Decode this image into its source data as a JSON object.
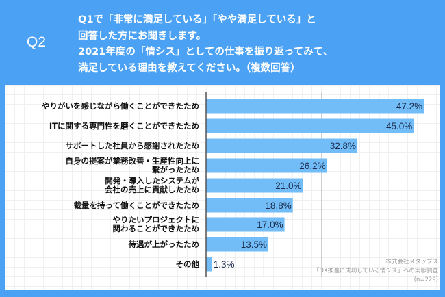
{
  "header": {
    "question_number": "Q2",
    "question_text": "Q1で「非常に満足している」「やや満足している」と\n回答した方にお聞きします。\n2021年度の「情シス」としての仕事を振り返ってみて、\n満足している理由を教えてください。（複数回答）"
  },
  "chart_data": {
    "type": "bar",
    "orientation": "horizontal",
    "categories": [
      "やりがいを感じながら働くことができたため",
      "ITに関する専門性を磨くことができたため",
      "サポートした社員から感謝されたため",
      "自身の提案が業務改善・生産性向上に\n繋がったため",
      "開発・導入したシステムが\n会社の売上に貢献したため",
      "裁量を持って働くことができたため",
      "やりたいプロジェクトに\n関わることができたため",
      "待遇が上がったため",
      "その他"
    ],
    "values": [
      47.2,
      45.0,
      32.8,
      26.2,
      21.0,
      18.8,
      17.0,
      13.5,
      1.3
    ],
    "value_labels": [
      "47.2%",
      "45.0%",
      "32.8%",
      "26.2%",
      "21.0%",
      "18.8%",
      "17.0%",
      "13.5%",
      "1.3%"
    ],
    "xlim": [
      0,
      50
    ],
    "grid_x": [
      12.5,
      25,
      37.5
    ],
    "bar_color": "#72bdf7",
    "label_color": "#1d2c4c"
  },
  "source": {
    "company": "株式会社メタップス",
    "survey": "「DX推進に成功している情シス」への実態調査",
    "n": "(n=229)"
  }
}
